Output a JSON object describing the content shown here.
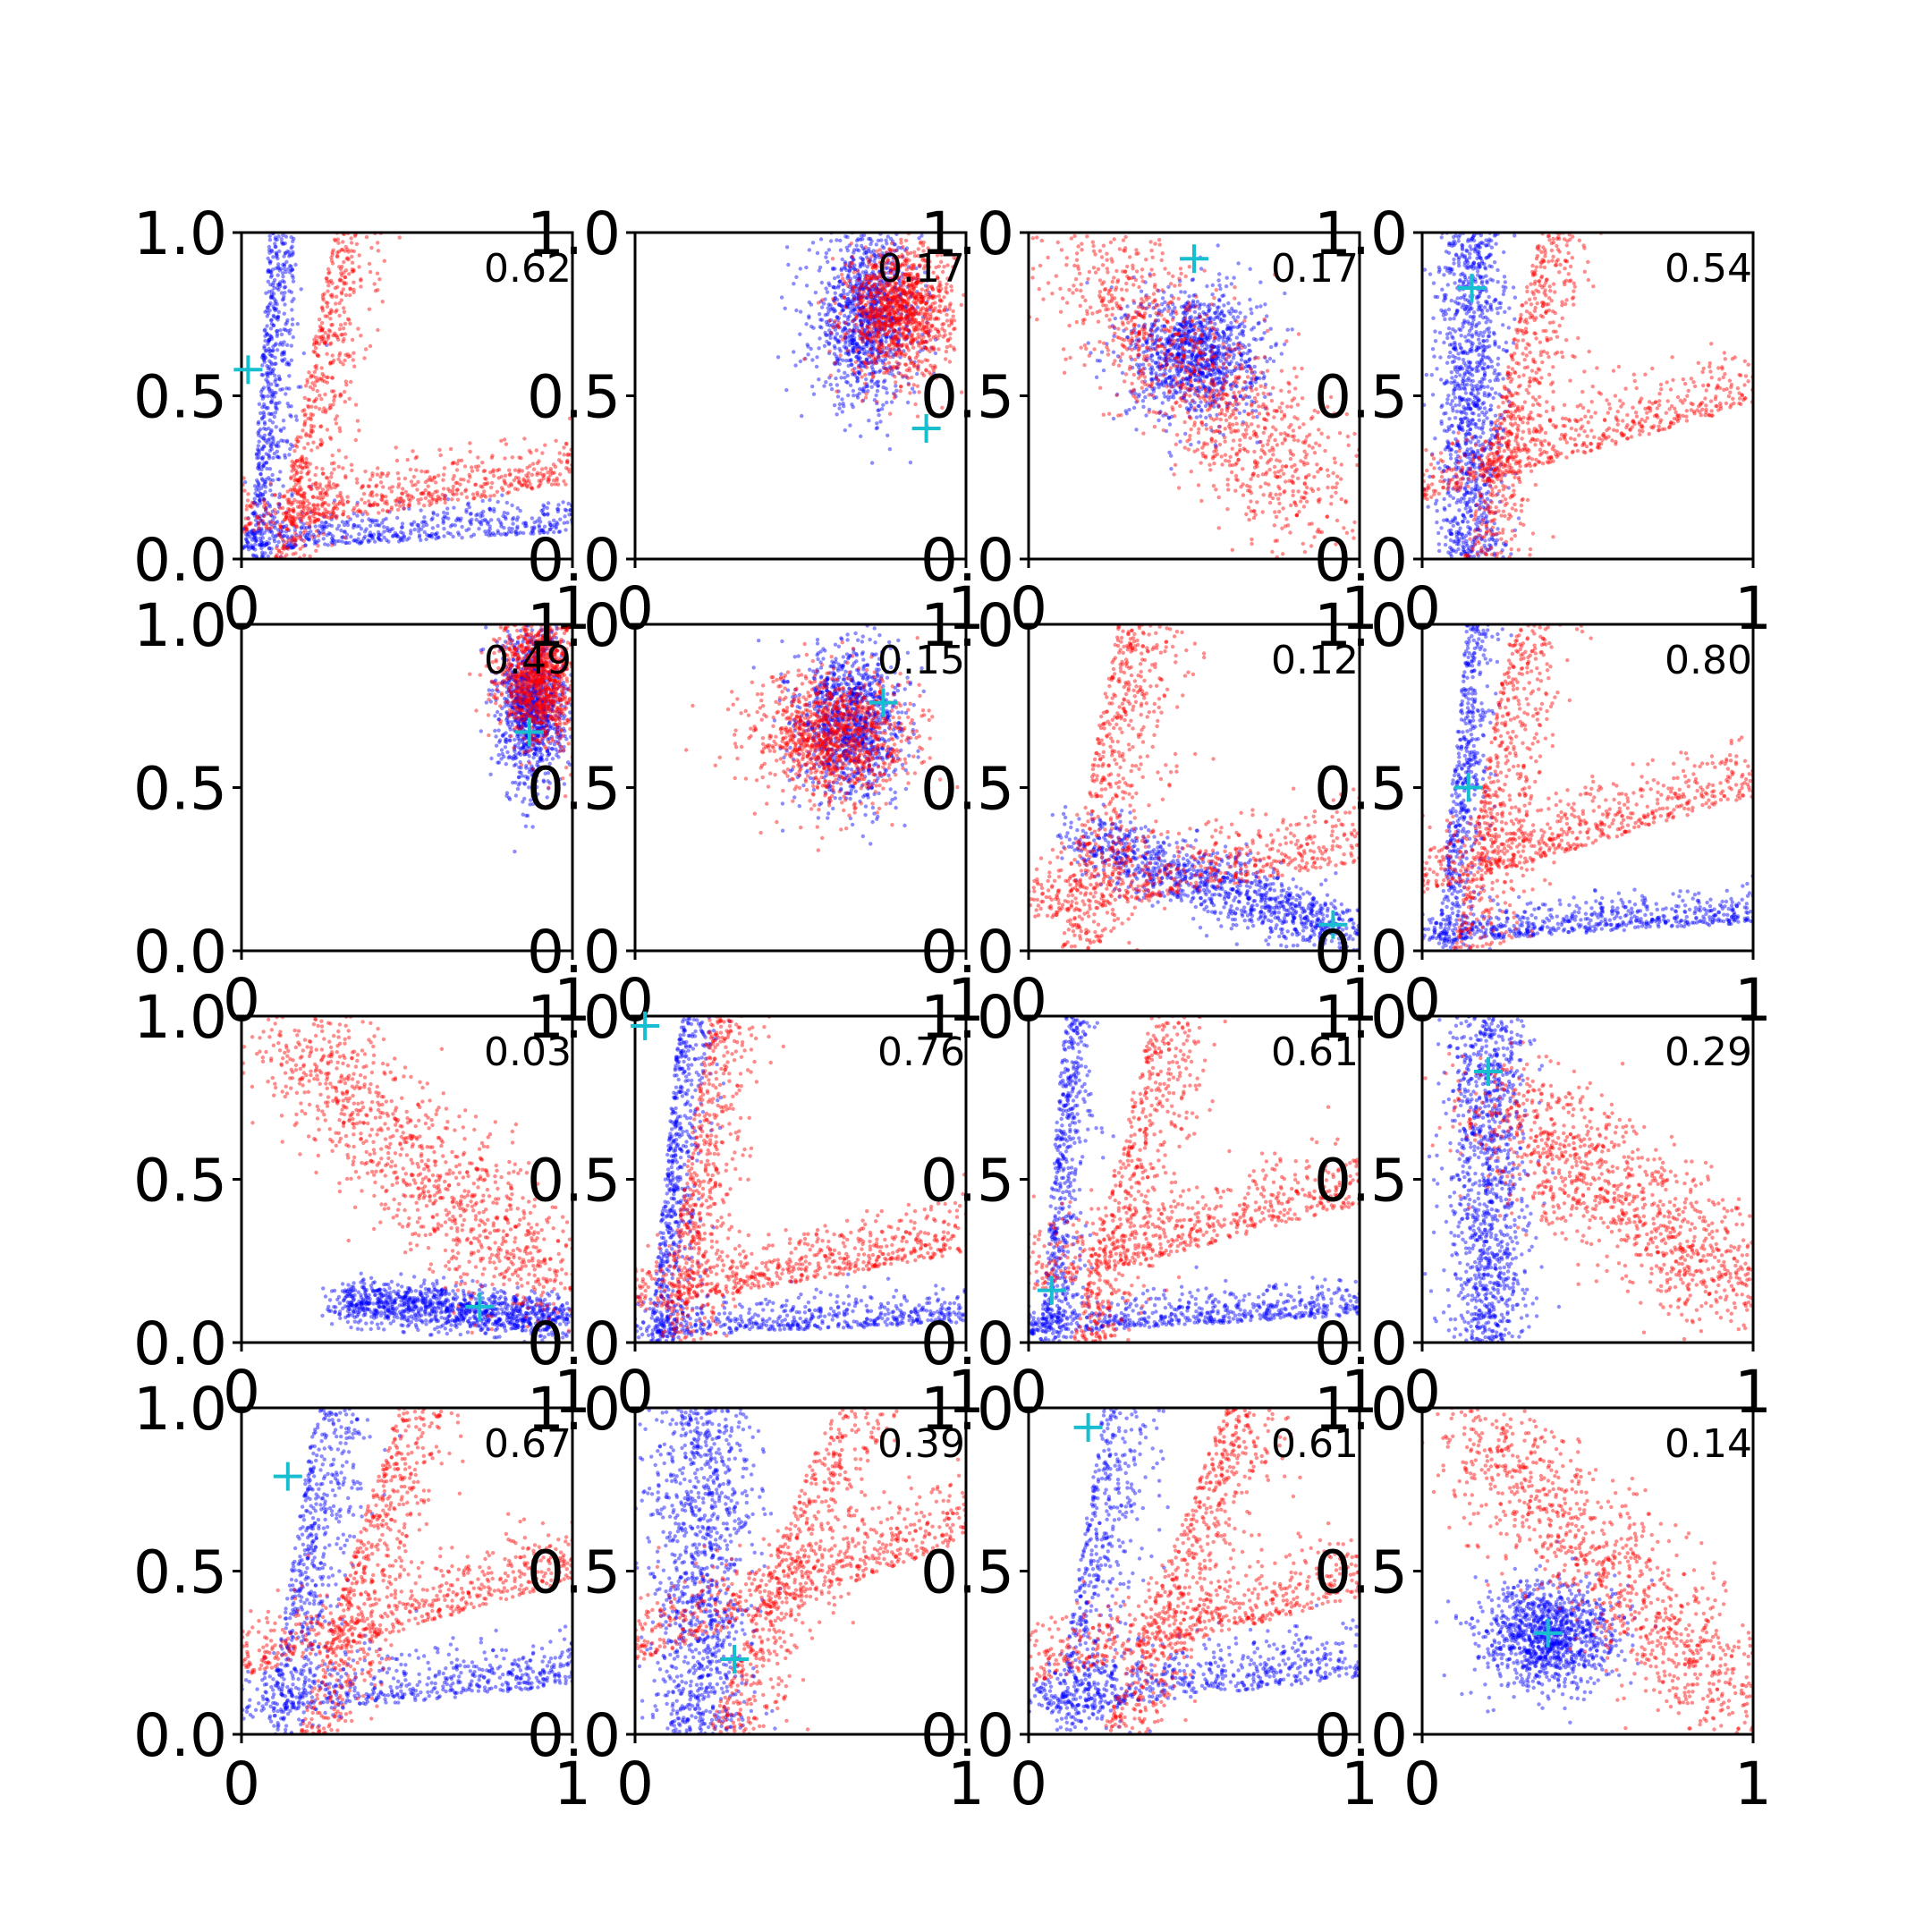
{
  "chart_data": {
    "type": "scatter",
    "layout": "4x4 grid of subplots",
    "axes": {
      "xlim": [
        0,
        1
      ],
      "ylim": [
        0,
        1
      ],
      "xticks": [
        0,
        1
      ],
      "xtick_labels": [
        "0",
        "1"
      ],
      "yticks": [
        0,
        0.5,
        1
      ],
      "ytick_labels": [
        "0.0",
        "0.5",
        "1.0"
      ],
      "grid": false
    },
    "colors": {
      "series_a": "#0000ff",
      "series_b": "#ff0000",
      "marker": "#17becf"
    },
    "panels": [
      {
        "annotation": "0.62",
        "marker": {
          "x": 0.02,
          "y": 0.58
        },
        "blue": {
          "pattern": "L",
          "cx": 0.04,
          "cy": 0.04,
          "cw": 0.05
        },
        "red": {
          "pattern": "L",
          "cx": 0.12,
          "cy": 0.1,
          "cw": 0.07
        }
      },
      {
        "annotation": "0.17",
        "marker": {
          "x": 0.88,
          "y": 0.4
        },
        "blue": {
          "pattern": "blob",
          "cx": 0.7,
          "cy": 0.74,
          "sx": 0.08,
          "sy": 0.13
        },
        "red": {
          "pattern": "blob",
          "cx": 0.8,
          "cy": 0.76,
          "sx": 0.08,
          "sy": 0.1
        }
      },
      {
        "annotation": "0.17",
        "marker": {
          "x": 0.5,
          "y": 0.92
        },
        "blue": {
          "pattern": "blob",
          "cx": 0.5,
          "cy": 0.63,
          "sx": 0.1,
          "sy": 0.1
        },
        "red": {
          "pattern": "band",
          "x0": 0.2,
          "y0": 0.92,
          "x1": 0.88,
          "y1": 0.15,
          "w": 0.11
        }
      },
      {
        "annotation": "0.54",
        "marker": {
          "x": 0.15,
          "y": 0.83
        },
        "blue": {
          "pattern": "vert",
          "cx": 0.15,
          "cy": 0.55,
          "cw": 0.05
        },
        "red": {
          "pattern": "L",
          "cx": 0.15,
          "cy": 0.2,
          "cw": 0.08
        }
      },
      {
        "annotation": "0.49",
        "marker": {
          "x": 0.87,
          "y": 0.67
        },
        "blue": {
          "pattern": "blob",
          "cx": 0.88,
          "cy": 0.75,
          "sx": 0.05,
          "sy": 0.12
        },
        "red": {
          "pattern": "blob",
          "cx": 0.9,
          "cy": 0.84,
          "sx": 0.06,
          "sy": 0.1
        }
      },
      {
        "annotation": "0.15",
        "marker": {
          "x": 0.75,
          "y": 0.76
        },
        "blue": {
          "pattern": "blob",
          "cx": 0.65,
          "cy": 0.7,
          "sx": 0.08,
          "sy": 0.12
        },
        "red": {
          "pattern": "blob",
          "cx": 0.6,
          "cy": 0.65,
          "sx": 0.12,
          "sy": 0.1
        }
      },
      {
        "annotation": "0.12",
        "marker": {
          "x": 0.92,
          "y": 0.08
        },
        "blue": {
          "pattern": "band",
          "x0": 0.15,
          "y0": 0.35,
          "x1": 0.98,
          "y1": 0.05,
          "w": 0.05
        },
        "red": {
          "pattern": "L",
          "cx": 0.12,
          "cy": 0.12,
          "cw": 0.1
        }
      },
      {
        "annotation": "0.80",
        "marker": {
          "x": 0.14,
          "y": 0.5
        },
        "blue": {
          "pattern": "L",
          "cx": 0.06,
          "cy": 0.04,
          "cw": 0.05
        },
        "red": {
          "pattern": "L",
          "cx": 0.12,
          "cy": 0.2,
          "cw": 0.09
        }
      },
      {
        "annotation": "0.03",
        "marker": {
          "x": 0.72,
          "y": 0.11
        },
        "blue": {
          "pattern": "band",
          "x0": 0.3,
          "y0": 0.13,
          "x1": 0.98,
          "y1": 0.07,
          "w": 0.035
        },
        "red": {
          "pattern": "band",
          "x0": 0.12,
          "y0": 0.95,
          "x1": 0.98,
          "y1": 0.12,
          "w": 0.1
        }
      },
      {
        "annotation": "0.76",
        "marker": {
          "x": 0.03,
          "y": 0.97
        },
        "blue": {
          "pattern": "L",
          "cx": 0.06,
          "cy": 0.03,
          "cw": 0.05
        },
        "red": {
          "pattern": "L",
          "cx": 0.1,
          "cy": 0.12,
          "cw": 0.08
        }
      },
      {
        "annotation": "0.61",
        "marker": {
          "x": 0.07,
          "y": 0.16
        },
        "blue": {
          "pattern": "L",
          "cx": 0.05,
          "cy": 0.04,
          "cw": 0.05
        },
        "red": {
          "pattern": "L",
          "cx": 0.16,
          "cy": 0.18,
          "cw": 0.09
        }
      },
      {
        "annotation": "0.29",
        "marker": {
          "x": 0.2,
          "y": 0.83
        },
        "blue": {
          "pattern": "vert",
          "cx": 0.2,
          "cy": 0.72,
          "cw": 0.06
        },
        "red": {
          "pattern": "band",
          "x0": 0.2,
          "y0": 0.75,
          "x1": 0.98,
          "y1": 0.17,
          "w": 0.1
        }
      },
      {
        "annotation": "0.67",
        "marker": {
          "x": 0.14,
          "y": 0.79
        },
        "blue": {
          "pattern": "L",
          "cx": 0.1,
          "cy": 0.07,
          "cw": 0.08
        },
        "red": {
          "pattern": "L",
          "cx": 0.2,
          "cy": 0.2,
          "cw": 0.09
        }
      },
      {
        "annotation": "0.39",
        "marker": {
          "x": 0.3,
          "y": 0.23
        },
        "blue": {
          "pattern": "vert",
          "cx": 0.2,
          "cy": 0.55,
          "cw": 0.08
        },
        "red": {
          "pattern": "L",
          "cx": 0.25,
          "cy": 0.25,
          "cw": 0.1
        }
      },
      {
        "annotation": "0.61",
        "marker": {
          "x": 0.18,
          "y": 0.94
        },
        "blue": {
          "pattern": "L",
          "cx": 0.1,
          "cy": 0.08,
          "cw": 0.08
        },
        "red": {
          "pattern": "L",
          "cx": 0.25,
          "cy": 0.18,
          "cw": 0.09
        }
      },
      {
        "annotation": "0.14",
        "marker": {
          "x": 0.38,
          "y": 0.31
        },
        "blue": {
          "pattern": "blob",
          "cx": 0.38,
          "cy": 0.3,
          "sx": 0.1,
          "sy": 0.08
        },
        "red": {
          "pattern": "band",
          "x0": 0.15,
          "y0": 0.95,
          "x1": 0.98,
          "y1": 0.05,
          "w": 0.1
        }
      }
    ]
  }
}
